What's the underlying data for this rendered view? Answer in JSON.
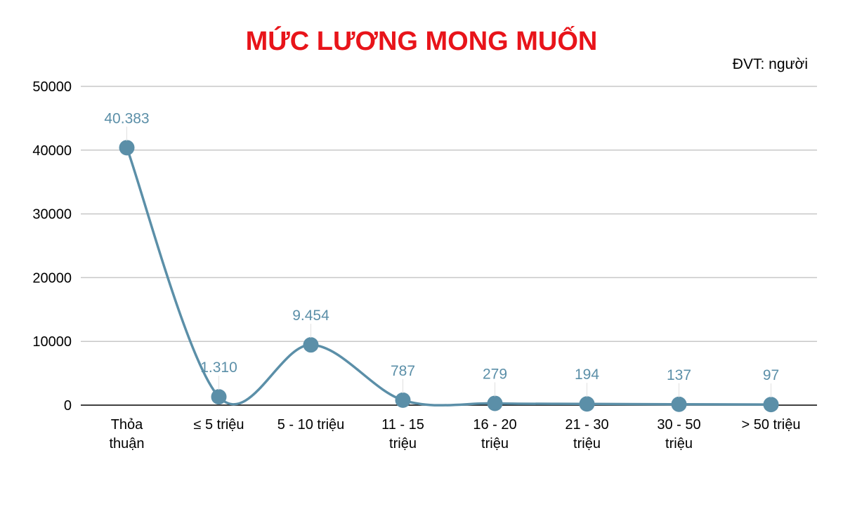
{
  "colors": {
    "title": "#e8141a",
    "series": "#5b8fa8",
    "grid": "#c8c8c8",
    "axis": "#000000"
  },
  "chart_data": {
    "type": "line",
    "title": "MỨC LƯƠNG MONG MUỐN",
    "unit_note": "ĐVT: người",
    "categories": [
      [
        "Thỏa",
        "thuận"
      ],
      [
        "≤ 5 triệu"
      ],
      [
        "5 - 10 triệu"
      ],
      [
        "11 - 15",
        "triệu"
      ],
      [
        "16 - 20",
        "triệu"
      ],
      [
        "21 - 30",
        "triệu"
      ],
      [
        "30 - 50",
        "triệu"
      ],
      [
        "> 50 triệu"
      ]
    ],
    "series": [
      {
        "values": [
          40383,
          1310,
          9454,
          787,
          279,
          194,
          137,
          97
        ],
        "labels": [
          "40.383",
          "1.310",
          "9.454",
          "787",
          "279",
          "194",
          "137",
          "97"
        ]
      }
    ],
    "yticks": [
      "0",
      "10000",
      "20000",
      "30000",
      "40000",
      "50000"
    ],
    "ylim": [
      0,
      50000
    ],
    "smooth": true,
    "grid": true,
    "legend": "none"
  }
}
